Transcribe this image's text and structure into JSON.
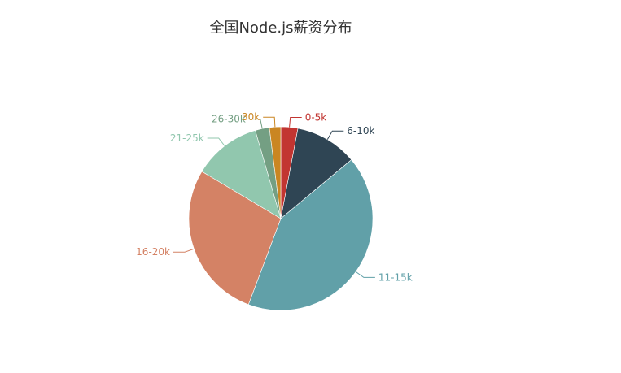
{
  "chart_data": {
    "type": "pie",
    "title": "全国Node.js薪资分布",
    "categories": [
      "0-5k",
      "6-10k",
      "11-15k",
      "16-20k",
      "21-25k",
      "26-30k",
      "30k"
    ],
    "values": [
      3,
      11,
      42,
      28,
      12,
      2.5,
      2
    ],
    "colors": [
      "#c23531",
      "#2f4554",
      "#61a0a8",
      "#d48265",
      "#91c7ae",
      "#749f83",
      "#ca8622"
    ],
    "legend": "none"
  }
}
